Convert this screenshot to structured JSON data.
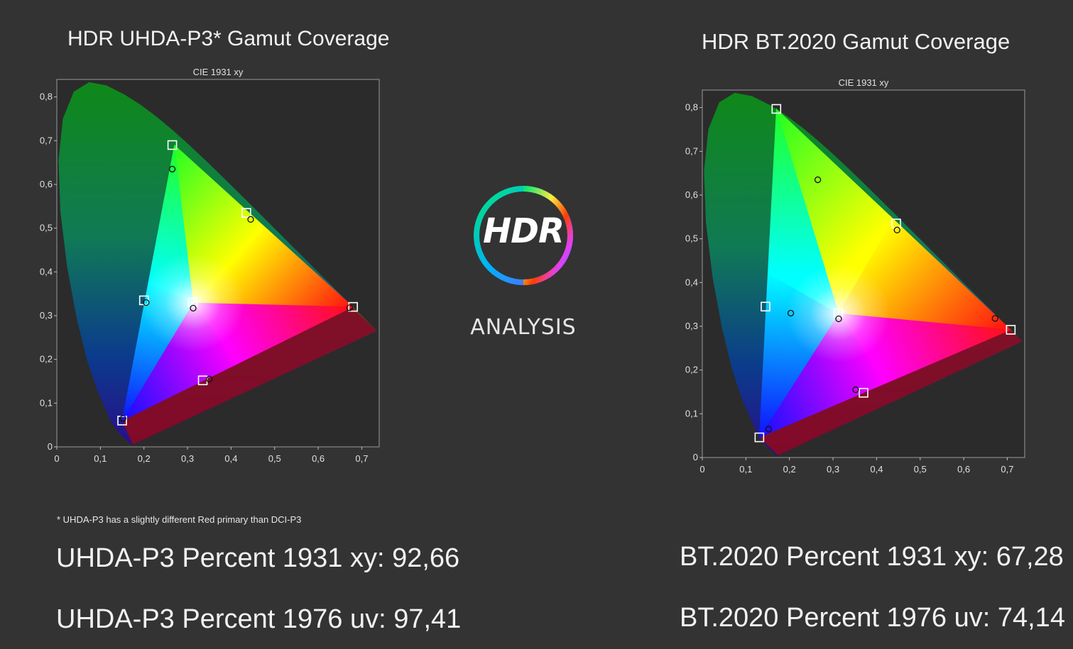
{
  "left": {
    "title": "HDR UHDA-P3* Gamut Coverage",
    "footnote": "* UHDA-P3 has a slightly different Red primary than DCI-P3",
    "stat_1931": "UHDA-P3 Percent 1931 xy: 92,66",
    "stat_1976": "UHDA-P3 Percent 1976 uv: 97,41"
  },
  "right": {
    "title": "HDR BT.2020  Gamut Coverage",
    "stat_1931": "BT.2020 Percent 1931 xy: 67,28",
    "stat_1976": "BT.2020 Percent 1976 uv: 74,14"
  },
  "logo": {
    "word": "HDR",
    "subtitle": "ANALYSIS",
    "ring_icon": "hdr-ring-icon"
  },
  "colors": {
    "background": "#333333",
    "plot_bg": "#2a2a2a"
  },
  "chart_data": [
    {
      "type": "scatter",
      "title": "CIE 1931 xy",
      "x_ticks": [
        "0",
        "0,1",
        "0,2",
        "0,3",
        "0,4",
        "0,5",
        "0,6",
        "0,7"
      ],
      "y_ticks": [
        "0",
        "0,1",
        "0,2",
        "0,3",
        "0,4",
        "0,5",
        "0,6",
        "0,7",
        "0,8"
      ],
      "xlim": [
        0,
        0.74
      ],
      "ylim": [
        0,
        0.84
      ],
      "gamut_triangle": [
        [
          0.27,
          0.69
        ],
        [
          0.68,
          0.32
        ],
        [
          0.15,
          0.06
        ]
      ],
      "target_points": [
        [
          0.265,
          0.69
        ],
        [
          0.435,
          0.535
        ],
        [
          0.68,
          0.32
        ],
        [
          0.2,
          0.335
        ],
        [
          0.312,
          0.33
        ],
        [
          0.335,
          0.152
        ],
        [
          0.15,
          0.06
        ]
      ],
      "measured_points": [
        [
          0.265,
          0.635
        ],
        [
          0.445,
          0.52
        ],
        [
          0.672,
          0.318
        ],
        [
          0.205,
          0.33
        ],
        [
          0.313,
          0.317
        ],
        [
          0.35,
          0.155
        ],
        [
          0.152,
          0.065
        ]
      ]
    },
    {
      "type": "scatter",
      "title": "CIE 1931 xy",
      "x_ticks": [
        "0",
        "0,1",
        "0,2",
        "0,3",
        "0,4",
        "0,5",
        "0,6",
        "0,7"
      ],
      "y_ticks": [
        "0",
        "0,1",
        "0,2",
        "0,3",
        "0,4",
        "0,5",
        "0,6",
        "0,7",
        "0,8"
      ],
      "xlim": [
        0,
        0.74
      ],
      "ylim": [
        0,
        0.84
      ],
      "gamut_triangle": [
        [
          0.17,
          0.797
        ],
        [
          0.708,
          0.292
        ],
        [
          0.131,
          0.046
        ]
      ],
      "target_points": [
        [
          0.17,
          0.797
        ],
        [
          0.445,
          0.535
        ],
        [
          0.708,
          0.292
        ],
        [
          0.145,
          0.345
        ],
        [
          0.312,
          0.33
        ],
        [
          0.37,
          0.148
        ],
        [
          0.131,
          0.046
        ]
      ],
      "measured_points": [
        [
          0.265,
          0.635
        ],
        [
          0.447,
          0.52
        ],
        [
          0.672,
          0.318
        ],
        [
          0.203,
          0.33
        ],
        [
          0.313,
          0.317
        ],
        [
          0.352,
          0.155
        ],
        [
          0.152,
          0.065
        ]
      ]
    }
  ]
}
